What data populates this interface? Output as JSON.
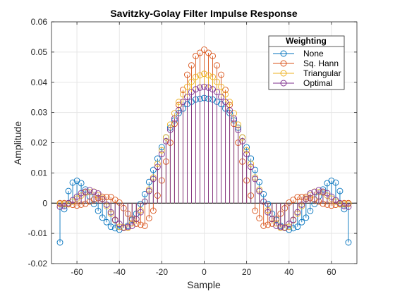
{
  "chart_data": {
    "type": "stem",
    "title": "Savitzky-Golay Filter Impulse Response",
    "xlabel": "Sample",
    "ylabel": "Amplitude",
    "xlim": [
      -72,
      72
    ],
    "ylim": [
      -0.02,
      0.06
    ],
    "xticks": [
      -60,
      -40,
      -20,
      0,
      20,
      40,
      60
    ],
    "yticks": [
      -0.02,
      -0.01,
      0,
      0.01,
      0.02,
      0.03,
      0.04,
      0.05,
      0.06
    ],
    "ytick_labels": [
      "-0.02",
      "-0.01",
      "0",
      "0.01",
      "0.02",
      "0.03",
      "0.04",
      "0.05",
      "0.06"
    ],
    "xtick_labels": [
      "-60",
      "-40",
      "-20",
      "0",
      "20",
      "40",
      "60"
    ],
    "grid": true,
    "legend": {
      "title": "Weighting",
      "position": "top-right"
    },
    "x": {
      "start": -68,
      "end": 68,
      "step": 2
    },
    "series": [
      {
        "name": "None",
        "color": "#0072BD",
        "knots": [
          [
            -68,
            -0.013
          ],
          [
            -67,
            -0.008
          ],
          [
            -66,
            -0.002
          ],
          [
            -64,
            0.004
          ],
          [
            -62,
            0.0068
          ],
          [
            -60,
            0.0074
          ],
          [
            -58,
            0.0066
          ],
          [
            -55,
            0.0035
          ],
          [
            -52,
            -0.0003
          ],
          [
            -48,
            -0.0048
          ],
          [
            -44,
            -0.0078
          ],
          [
            -40,
            -0.0088
          ],
          [
            -36,
            -0.0075
          ],
          [
            -32,
            -0.0035
          ],
          [
            -28,
            0.003
          ],
          [
            -24,
            0.011
          ],
          [
            -20,
            0.0185
          ],
          [
            -16,
            0.025
          ],
          [
            -12,
            0.0298
          ],
          [
            -8,
            0.0328
          ],
          [
            -4,
            0.0343
          ],
          [
            0,
            0.0348
          ],
          [
            4,
            0.0343
          ],
          [
            8,
            0.0328
          ],
          [
            12,
            0.0298
          ],
          [
            16,
            0.025
          ],
          [
            20,
            0.0185
          ],
          [
            24,
            0.011
          ],
          [
            28,
            0.003
          ],
          [
            32,
            -0.0035
          ],
          [
            36,
            -0.0075
          ],
          [
            40,
            -0.0088
          ],
          [
            44,
            -0.0078
          ],
          [
            48,
            -0.0048
          ],
          [
            52,
            -0.0003
          ],
          [
            55,
            0.0035
          ],
          [
            58,
            0.0066
          ],
          [
            60,
            0.0074
          ],
          [
            62,
            0.0068
          ],
          [
            64,
            0.004
          ],
          [
            66,
            -0.002
          ],
          [
            67,
            -0.008
          ],
          [
            68,
            -0.013
          ]
        ]
      },
      {
        "name": "Sq. Hann",
        "color": "#D95319",
        "knots": [
          [
            -68,
            0
          ],
          [
            -66,
            0
          ],
          [
            -64,
            -0.0003
          ],
          [
            -60,
            -0.0008
          ],
          [
            -56,
            -0.0002
          ],
          [
            -52,
            0.0012
          ],
          [
            -48,
            0.0021
          ],
          [
            -44,
            0.002
          ],
          [
            -40,
            0.0002
          ],
          [
            -36,
            -0.0035
          ],
          [
            -32,
            -0.0068
          ],
          [
            -28,
            -0.0075
          ],
          [
            -24,
            -0.0025
          ],
          [
            -20,
            0.0075
          ],
          [
            -16,
            0.02
          ],
          [
            -12,
            0.0325
          ],
          [
            -8,
            0.0425
          ],
          [
            -4,
            0.0487
          ],
          [
            0,
            0.0508
          ],
          [
            4,
            0.0487
          ],
          [
            8,
            0.0425
          ],
          [
            12,
            0.0325
          ],
          [
            16,
            0.02
          ],
          [
            20,
            0.0075
          ],
          [
            24,
            -0.0025
          ],
          [
            28,
            -0.0075
          ],
          [
            32,
            -0.0068
          ],
          [
            36,
            -0.0035
          ],
          [
            40,
            0.0002
          ],
          [
            44,
            0.002
          ],
          [
            48,
            0.0021
          ],
          [
            52,
            0.0012
          ],
          [
            56,
            -0.0002
          ],
          [
            60,
            -0.0008
          ],
          [
            64,
            -0.0003
          ],
          [
            66,
            0
          ],
          [
            68,
            0
          ]
        ]
      },
      {
        "name": "Triangular",
        "color": "#EDB120",
        "knots": [
          [
            -68,
            -0.0003
          ],
          [
            -64,
            -0.0004
          ],
          [
            -60,
            0.0015
          ],
          [
            -56,
            0.0035
          ],
          [
            -52,
            0.0038
          ],
          [
            -48,
            0.0015
          ],
          [
            -44,
            -0.0035
          ],
          [
            -40,
            -0.0078
          ],
          [
            -36,
            -0.0082
          ],
          [
            -32,
            -0.0052
          ],
          [
            -28,
            0.0005
          ],
          [
            -24,
            0.0085
          ],
          [
            -20,
            0.0175
          ],
          [
            -16,
            0.026
          ],
          [
            -12,
            0.0335
          ],
          [
            -8,
            0.0385
          ],
          [
            -4,
            0.0418
          ],
          [
            0,
            0.0428
          ],
          [
            4,
            0.0418
          ],
          [
            8,
            0.0385
          ],
          [
            12,
            0.0335
          ],
          [
            16,
            0.026
          ],
          [
            20,
            0.0175
          ],
          [
            24,
            0.0085
          ],
          [
            28,
            0.0005
          ],
          [
            32,
            -0.0052
          ],
          [
            36,
            -0.0082
          ],
          [
            40,
            -0.0078
          ],
          [
            44,
            -0.0035
          ],
          [
            48,
            0.0015
          ],
          [
            52,
            0.0038
          ],
          [
            56,
            0.0035
          ],
          [
            60,
            0.0015
          ],
          [
            64,
            -0.0004
          ],
          [
            68,
            -0.0003
          ]
        ]
      },
      {
        "name": "Optimal",
        "color": "#7E2F8E",
        "knots": [
          [
            -68,
            -0.0012
          ],
          [
            -66,
            -0.001
          ],
          [
            -62,
            0.001
          ],
          [
            -58,
            0.0033
          ],
          [
            -54,
            0.0043
          ],
          [
            -50,
            0.0032
          ],
          [
            -46,
            -0.0005
          ],
          [
            -42,
            -0.0055
          ],
          [
            -38,
            -0.0082
          ],
          [
            -34,
            -0.0075
          ],
          [
            -30,
            -0.003
          ],
          [
            -26,
            0.004
          ],
          [
            -22,
            0.012
          ],
          [
            -18,
            0.0205
          ],
          [
            -14,
            0.028
          ],
          [
            -10,
            0.0335
          ],
          [
            -6,
            0.0368
          ],
          [
            -3,
            0.0381
          ],
          [
            0,
            0.0385
          ],
          [
            3,
            0.0381
          ],
          [
            6,
            0.0368
          ],
          [
            10,
            0.0335
          ],
          [
            14,
            0.028
          ],
          [
            18,
            0.0205
          ],
          [
            22,
            0.012
          ],
          [
            26,
            0.004
          ],
          [
            30,
            -0.003
          ],
          [
            34,
            -0.0075
          ],
          [
            38,
            -0.0082
          ],
          [
            42,
            -0.0055
          ],
          [
            46,
            -0.0005
          ],
          [
            50,
            0.0032
          ],
          [
            54,
            0.0043
          ],
          [
            58,
            0.0033
          ],
          [
            62,
            0.001
          ],
          [
            66,
            -0.001
          ],
          [
            68,
            -0.0012
          ]
        ]
      }
    ]
  }
}
